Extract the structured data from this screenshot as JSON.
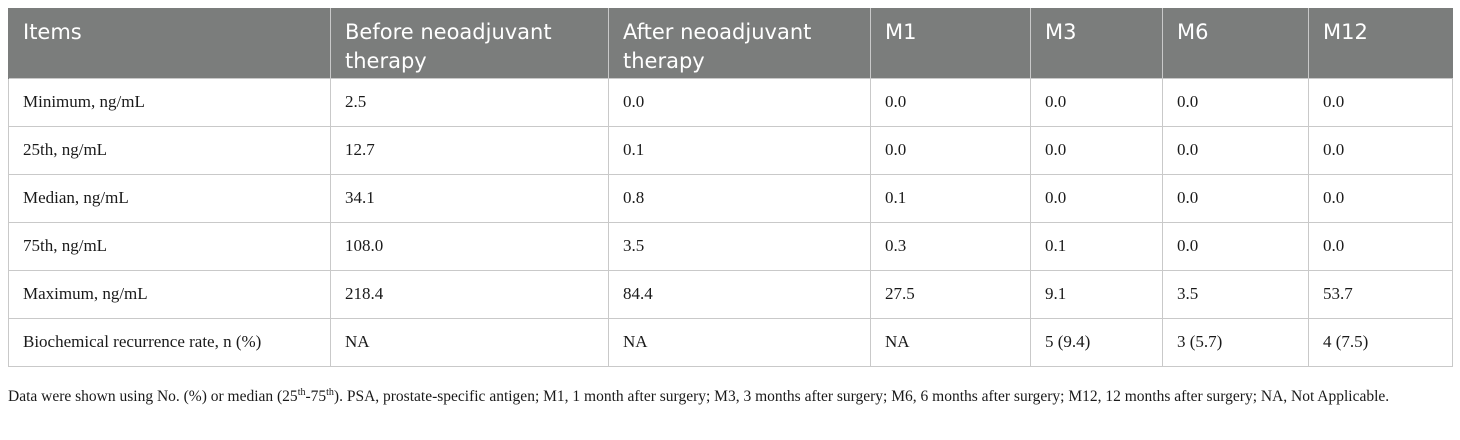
{
  "table": {
    "headers": [
      "Items",
      "Before neoadjuvant therapy",
      "After neoadjuvant therapy",
      "M1",
      "M3",
      "M6",
      "M12"
    ],
    "rows": [
      [
        "Minimum, ng/mL",
        "2.5",
        "0.0",
        "0.0",
        "0.0",
        "0.0",
        "0.0"
      ],
      [
        "25th, ng/mL",
        "12.7",
        "0.1",
        "0.0",
        "0.0",
        "0.0",
        "0.0"
      ],
      [
        "Median, ng/mL",
        "34.1",
        "0.8",
        "0.1",
        "0.0",
        "0.0",
        "0.0"
      ],
      [
        "75th, ng/mL",
        "108.0",
        "3.5",
        "0.3",
        "0.1",
        "0.0",
        "0.0"
      ],
      [
        "Maximum, ng/mL",
        "218.4",
        "84.4",
        "27.5",
        "9.1",
        "3.5",
        "53.7"
      ],
      [
        "Biochemical recurrence rate, n (%)",
        "NA",
        "NA",
        "NA",
        "5 (9.4)",
        "3 (5.7)",
        "4 (7.5)"
      ]
    ]
  },
  "footnote": {
    "part1": "Data were shown using No. (%) or median (25",
    "sup1": "th",
    "part2": "-75",
    "sup2": "th",
    "part3": "). PSA, prostate-specific antigen; M1, 1 month after surgery; M3, 3 months after surgery; M6, 6 months after surgery; M12, 12 months after surgery; NA, Not Applicable."
  }
}
